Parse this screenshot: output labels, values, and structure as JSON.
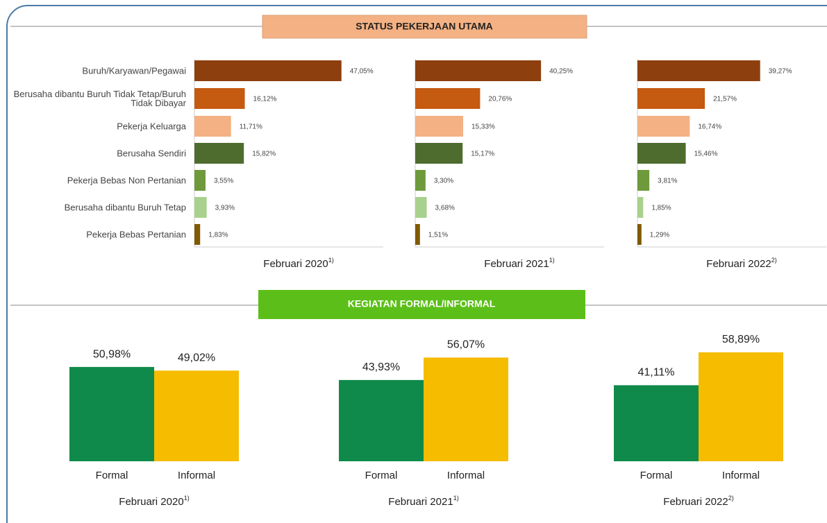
{
  "chart_data": [
    {
      "type": "hbar",
      "title": "STATUS PEKERJAAN UTAMA",
      "categories": [
        "Buruh/Karyawan/Pegawai",
        "Berusaha dibantu Buruh Tidak Tetap/Buruh Tidak Dibayar",
        "Pekerja Keluarga",
        "Berusaha Sendiri",
        "Pekerja Bebas Non Pertanian",
        "Berusaha dibantu Buruh Tetap",
        "Pekerja Bebas Pertanian"
      ],
      "colors": [
        "#8e3f0e",
        "#c55a11",
        "#f4b183",
        "#4f6c2f",
        "#6f9a3c",
        "#a9d18e",
        "#7f5a00"
      ],
      "xlim": [
        0,
        50
      ],
      "series": [
        {
          "name": "Februari 2020",
          "note": "1)",
          "values": [
            47.05,
            16.12,
            11.71,
            15.82,
            3.55,
            3.93,
            1.83
          ],
          "value_labels": [
            "47,05%",
            "16,12%",
            "11,71%",
            "15,82%",
            "3,55%",
            "3,93%",
            "1,83%"
          ]
        },
        {
          "name": "Februari 2021",
          "note": "1)",
          "values": [
            40.25,
            20.76,
            15.33,
            15.17,
            3.3,
            3.68,
            1.51
          ],
          "value_labels": [
            "40,25%",
            "20,76%",
            "15,33%",
            "15,17%",
            "3,30%",
            "3,68%",
            "1,51%"
          ]
        },
        {
          "name": "Februari 2022",
          "note": "2)",
          "values": [
            39.27,
            21.57,
            16.74,
            15.46,
            3.81,
            1.85,
            1.29
          ],
          "value_labels": [
            "39,27%",
            "21,57%",
            "16,74%",
            "15,46%",
            "3,81%",
            "1,85%",
            "1,29%"
          ]
        }
      ]
    },
    {
      "type": "bar",
      "title": "KEGIATAN FORMAL/INFORMAL",
      "categories": [
        "Formal",
        "Informal"
      ],
      "colors": [
        "#0f8a4a",
        "#f6bc00"
      ],
      "ylim": [
        0,
        60
      ],
      "series": [
        {
          "name": "Februari 2020",
          "note": "1)",
          "values": [
            50.98,
            49.02
          ],
          "value_labels": [
            "50,98%",
            "49,02%"
          ]
        },
        {
          "name": "Februari 2021",
          "note": "1)",
          "values": [
            43.93,
            56.07
          ],
          "value_labels": [
            "43,93%",
            "56,07%"
          ]
        },
        {
          "name": "Februari 2022",
          "note": "2)",
          "values": [
            41.11,
            58.89
          ],
          "value_labels": [
            "41,11%",
            "58,89%"
          ]
        }
      ]
    }
  ]
}
